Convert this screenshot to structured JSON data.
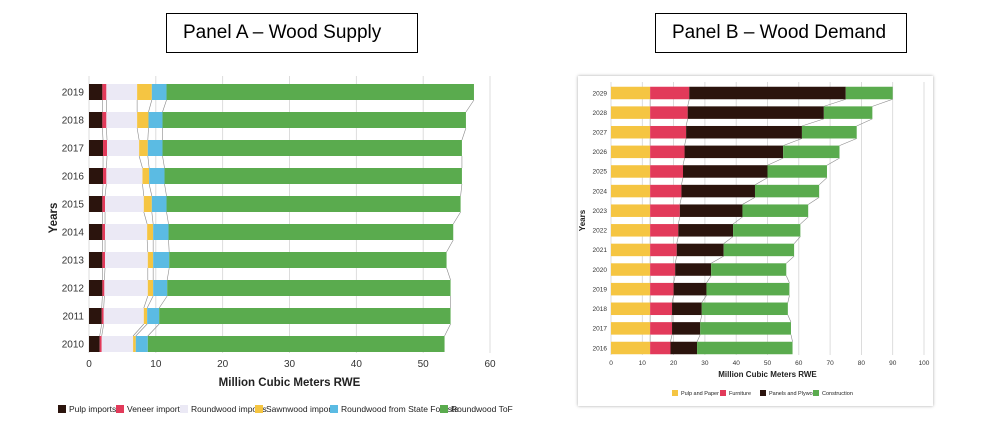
{
  "panels": {
    "a_title": "Panel A – Wood Supply",
    "b_title": "Panel B – Wood Demand"
  },
  "colors": {
    "pulp": "#2b140d",
    "veneer": "#e23a5a",
    "roundwood_imports": "#ebe9f5",
    "sawnwood": "#f5c542",
    "state_forests": "#5bbbe3",
    "tof": "#5aab4e",
    "b_pulp": "#f5c542",
    "b_furniture": "#e23a5a",
    "b_panels": "#2b140d",
    "b_construction": "#5aab4e"
  },
  "chart_data": [
    {
      "type": "bar",
      "orientation": "horizontal",
      "stacked": true,
      "title": "Panel A – Wood Supply",
      "xlabel": "Million Cubic Meters RWE",
      "ylabel": "Years",
      "xlim": [
        0,
        60
      ],
      "xticks": [
        0,
        10,
        20,
        30,
        40,
        50,
        60
      ],
      "grid": true,
      "legend_position": "bottom",
      "categories": [
        "2019",
        "2018",
        "2017",
        "2016",
        "2015",
        "2014",
        "2013",
        "2012",
        "2011",
        "2010"
      ],
      "series": [
        {
          "name": "Pulp imports",
          "color_key": "pulp",
          "values": [
            2.0,
            2.0,
            2.1,
            2.1,
            2.0,
            2.0,
            2.0,
            2.0,
            1.9,
            1.6
          ]
        },
        {
          "name": "Veneer imports",
          "color_key": "veneer",
          "values": [
            0.6,
            0.6,
            0.6,
            0.5,
            0.4,
            0.4,
            0.4,
            0.3,
            0.3,
            0.3
          ]
        },
        {
          "name": "Roundwood imports",
          "color_key": "roundwood_imports",
          "values": [
            4.6,
            4.6,
            4.8,
            5.4,
            5.8,
            6.3,
            6.4,
            6.5,
            6.0,
            4.7
          ]
        },
        {
          "name": "Sawnwood imports",
          "color_key": "sawnwood",
          "values": [
            2.2,
            1.7,
            1.3,
            1.0,
            1.2,
            0.9,
            0.8,
            0.8,
            0.5,
            0.4
          ]
        },
        {
          "name": "Roundwood from State Forests",
          "color_key": "state_forests",
          "values": [
            2.2,
            2.1,
            2.2,
            2.3,
            2.2,
            2.3,
            2.4,
            2.1,
            1.8,
            1.8
          ]
        },
        {
          "name": "Roundwood ToF",
          "color_key": "tof",
          "values": [
            46.0,
            45.4,
            44.8,
            44.5,
            44.0,
            42.6,
            41.5,
            42.4,
            43.6,
            44.4
          ]
        }
      ]
    },
    {
      "type": "bar",
      "orientation": "horizontal",
      "stacked": true,
      "title": "Panel B – Wood Demand",
      "xlabel": "Million Cubic Meters RWE",
      "ylabel": "Years",
      "xlim": [
        0,
        100
      ],
      "xticks": [
        0,
        10,
        20,
        30,
        40,
        50,
        60,
        70,
        80,
        90,
        100
      ],
      "grid": true,
      "legend_position": "bottom",
      "categories": [
        "2029",
        "2028",
        "2027",
        "2026",
        "2025",
        "2024",
        "2023",
        "2022",
        "2021",
        "2020",
        "2019",
        "2018",
        "2017",
        "2016"
      ],
      "series": [
        {
          "name": "Pulp and Paper",
          "color_key": "b_pulp",
          "values": [
            12.5,
            12.5,
            12.5,
            12.5,
            12.5,
            12.5,
            12.5,
            12.5,
            12.5,
            12.5,
            12.5,
            12.5,
            12.5,
            12.5
          ]
        },
        {
          "name": "Furniture",
          "color_key": "b_furniture",
          "values": [
            12.5,
            12.0,
            11.5,
            11.0,
            10.5,
            10.0,
            9.5,
            9.0,
            8.5,
            8.0,
            7.5,
            7.0,
            7.0,
            6.5
          ]
        },
        {
          "name": "Panels and Plywood",
          "color_key": "b_panels",
          "values": [
            50.0,
            43.5,
            37.0,
            31.5,
            27.0,
            23.5,
            20.0,
            17.5,
            15.0,
            11.5,
            10.5,
            9.5,
            9.0,
            8.5
          ]
        },
        {
          "name": "Construction",
          "color_key": "b_construction",
          "values": [
            15.0,
            15.5,
            17.5,
            18.0,
            19.0,
            20.5,
            21.0,
            21.5,
            22.5,
            24.0,
            26.5,
            27.5,
            29.0,
            30.5
          ]
        }
      ]
    }
  ]
}
